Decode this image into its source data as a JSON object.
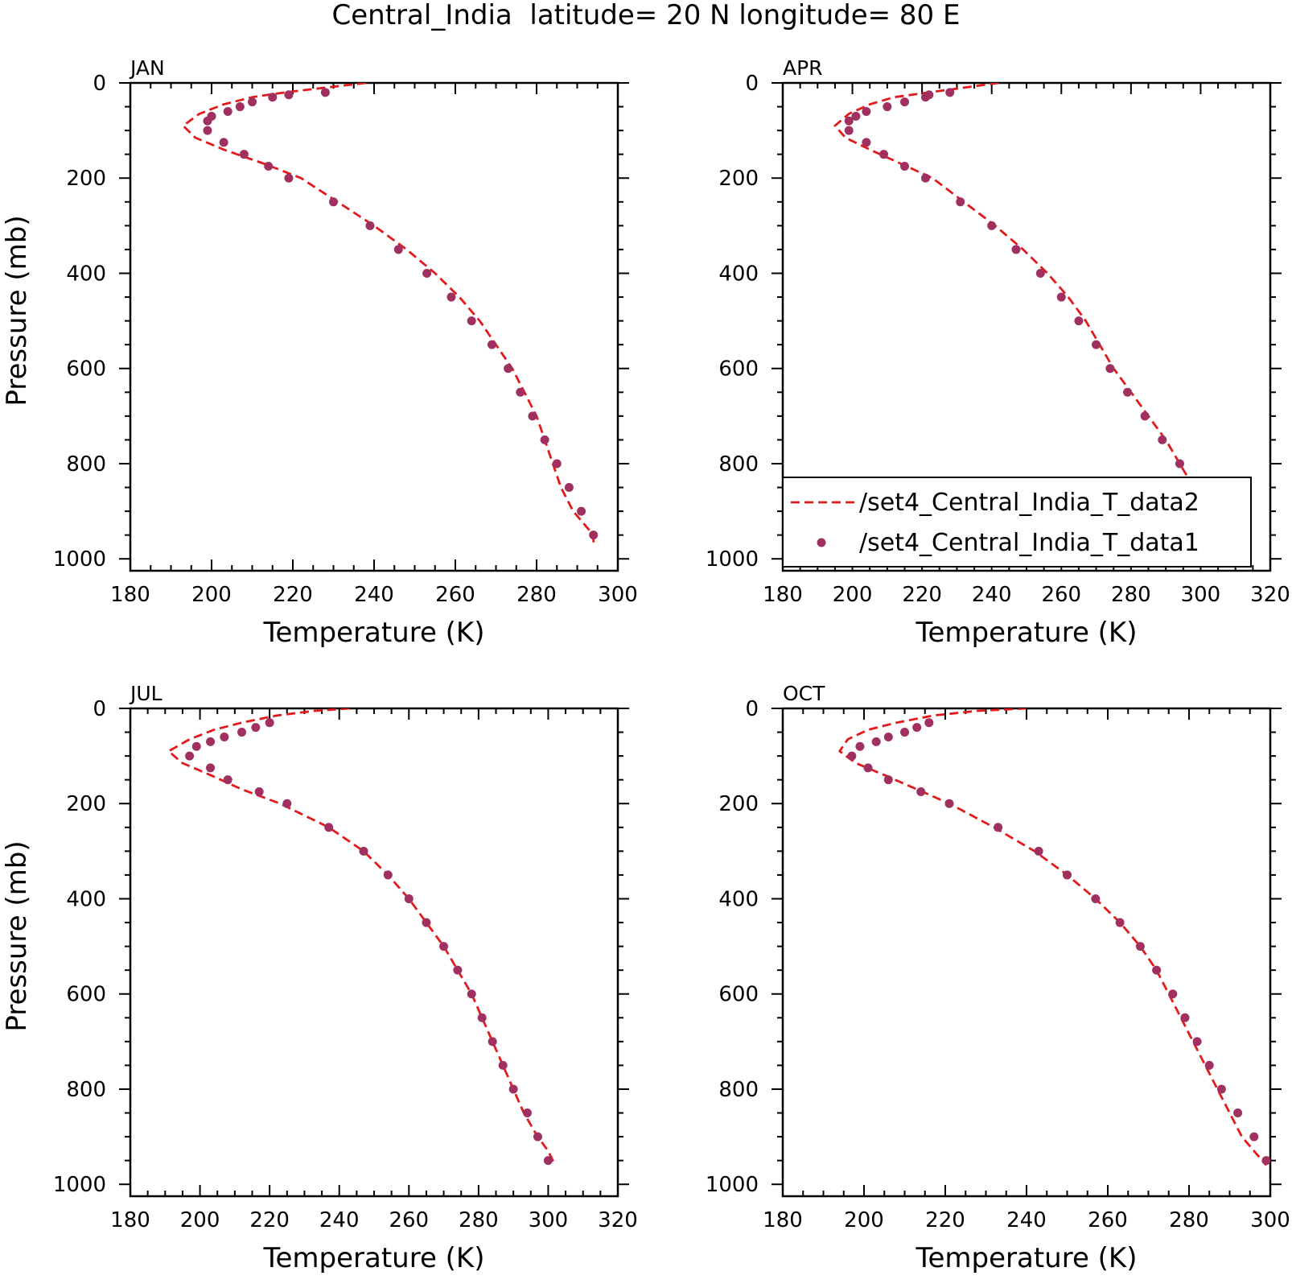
{
  "figure_title": "Central_India  latitude= 20 N longitude= 80 E",
  "legend": {
    "entries": [
      {
        "label": "/set4_Central_India_T_data2",
        "style": "dashed-line"
      },
      {
        "label": "/set4_Central_India_T_data1",
        "style": "dots"
      }
    ]
  },
  "colors": {
    "line": "#e31a1c",
    "dots": "#a03060"
  },
  "chart_data": [
    {
      "type": "line",
      "title": "JAN",
      "xlabel": "Temperature (K)",
      "ylabel": "Pressure (mb)",
      "xlim": [
        180,
        300
      ],
      "ylim": [
        0,
        1025
      ],
      "y_inverted": true,
      "xticks": [
        180,
        200,
        220,
        240,
        260,
        280,
        300
      ],
      "yticks": [
        0,
        200,
        400,
        600,
        800,
        1000
      ],
      "series": [
        {
          "name": "/set4_Central_India_T_data2",
          "style": "dashed-line",
          "x": [
            238,
            228,
            218,
            210,
            203,
            197,
            193,
            196,
            203,
            213,
            222,
            231,
            240,
            248,
            255,
            261,
            266,
            270,
            274,
            277,
            280,
            282,
            284,
            286,
            289,
            292,
            294,
            294
          ],
          "y": [
            0,
            10,
            20,
            30,
            45,
            65,
            90,
            115,
            140,
            170,
            200,
            250,
            300,
            350,
            400,
            450,
            500,
            550,
            600,
            650,
            700,
            750,
            800,
            850,
            900,
            930,
            950,
            970
          ]
        },
        {
          "name": "/set4_Central_India_T_data1",
          "style": "dots",
          "x": [
            228,
            219,
            215,
            210,
            207,
            204,
            200,
            199,
            199,
            203,
            208,
            214,
            219,
            230,
            239,
            246,
            253,
            259,
            264,
            269,
            273,
            276,
            279,
            282,
            285,
            288,
            291,
            294
          ],
          "y": [
            20,
            25,
            30,
            40,
            50,
            60,
            70,
            80,
            100,
            125,
            150,
            175,
            200,
            250,
            300,
            350,
            400,
            450,
            500,
            550,
            600,
            650,
            700,
            750,
            800,
            850,
            900,
            950
          ]
        }
      ]
    },
    {
      "type": "line",
      "title": "APR",
      "xlabel": "Temperature (K)",
      "ylabel": "",
      "xlim": [
        180,
        320
      ],
      "ylim": [
        0,
        1025
      ],
      "y_inverted": true,
      "xticks": [
        180,
        200,
        220,
        240,
        260,
        280,
        300,
        320
      ],
      "yticks": [
        0,
        200,
        400,
        600,
        800,
        1000
      ],
      "series": [
        {
          "name": "/set4_Central_India_T_data2",
          "style": "dashed-line",
          "x": [
            242,
            232,
            222,
            212,
            205,
            199,
            195,
            198,
            205,
            214,
            223,
            232,
            241,
            249,
            256,
            262,
            267,
            271,
            275,
            280,
            285,
            290,
            294,
            298,
            302,
            305,
            307,
            303
          ],
          "y": [
            0,
            10,
            20,
            30,
            45,
            65,
            90,
            115,
            140,
            170,
            200,
            250,
            300,
            350,
            400,
            450,
            500,
            550,
            600,
            650,
            700,
            750,
            800,
            850,
            900,
            930,
            950,
            970
          ]
        },
        {
          "name": "/set4_Central_India_T_data1",
          "style": "dots",
          "x": [
            228,
            222,
            221,
            215,
            210,
            204,
            201,
            199,
            199,
            204,
            209,
            215,
            221,
            231,
            240,
            247,
            254,
            260,
            265,
            270,
            274,
            279,
            284,
            289,
            294,
            298,
            302,
            303
          ],
          "y": [
            20,
            25,
            30,
            40,
            50,
            60,
            70,
            80,
            100,
            125,
            150,
            175,
            200,
            250,
            300,
            350,
            400,
            450,
            500,
            550,
            600,
            650,
            700,
            750,
            800,
            850,
            900,
            950
          ]
        }
      ]
    },
    {
      "type": "line",
      "title": "JUL",
      "xlabel": "Temperature (K)",
      "ylabel": "Pressure (mb)",
      "xlim": [
        180,
        320
      ],
      "ylim": [
        0,
        1025
      ],
      "y_inverted": true,
      "xticks": [
        180,
        200,
        220,
        240,
        260,
        280,
        300,
        320
      ],
      "yticks": [
        0,
        200,
        400,
        600,
        800,
        1000
      ],
      "series": [
        {
          "name": "/set4_Central_India_T_data2",
          "style": "dashed-line",
          "x": [
            243,
            233,
            222,
            212,
            204,
            197,
            191,
            195,
            203,
            212,
            223,
            237,
            247,
            254,
            260,
            265,
            270,
            274,
            278,
            281,
            284,
            287,
            290,
            293,
            297,
            300,
            302
          ],
          "y": [
            0,
            5,
            15,
            30,
            45,
            65,
            90,
            115,
            140,
            170,
            200,
            250,
            300,
            350,
            400,
            450,
            500,
            550,
            600,
            650,
            700,
            750,
            800,
            850,
            900,
            930,
            960
          ]
        },
        {
          "name": "/set4_Central_India_T_data1",
          "style": "dots",
          "x": [
            220,
            216,
            212,
            207,
            203,
            199,
            197,
            203,
            208,
            217,
            225,
            237,
            247,
            254,
            260,
            265,
            270,
            274,
            278,
            281,
            284,
            287,
            290,
            294,
            297,
            300
          ],
          "y": [
            30,
            40,
            50,
            60,
            70,
            80,
            100,
            125,
            150,
            175,
            200,
            250,
            300,
            350,
            400,
            450,
            500,
            550,
            600,
            650,
            700,
            750,
            800,
            850,
            900,
            950
          ]
        }
      ]
    },
    {
      "type": "line",
      "title": "OCT",
      "xlabel": "Temperature (K)",
      "ylabel": "",
      "xlim": [
        180,
        300
      ],
      "ylim": [
        0,
        1025
      ],
      "y_inverted": true,
      "xticks": [
        180,
        200,
        220,
        240,
        260,
        280,
        300
      ],
      "yticks": [
        0,
        200,
        400,
        600,
        800,
        1000
      ],
      "series": [
        {
          "name": "/set4_Central_India_T_data2",
          "style": "dashed-line",
          "x": [
            240,
            228,
            217,
            208,
            201,
            196,
            194,
            198,
            205,
            213,
            221,
            232,
            242,
            250,
            257,
            263,
            268,
            272,
            275,
            278,
            281,
            284,
            287,
            290,
            293,
            296,
            299
          ],
          "y": [
            0,
            5,
            15,
            30,
            45,
            65,
            90,
            115,
            140,
            170,
            200,
            250,
            300,
            350,
            400,
            450,
            500,
            550,
            600,
            650,
            700,
            750,
            800,
            850,
            900,
            930,
            960
          ]
        },
        {
          "name": "/set4_Central_India_T_data1",
          "style": "dots",
          "x": [
            216,
            213,
            210,
            206,
            203,
            199,
            197,
            201,
            206,
            214,
            221,
            233,
            243,
            250,
            257,
            263,
            268,
            272,
            276,
            279,
            282,
            285,
            288,
            292,
            296,
            299
          ],
          "y": [
            30,
            40,
            50,
            60,
            70,
            80,
            100,
            125,
            150,
            175,
            200,
            250,
            300,
            350,
            400,
            450,
            500,
            550,
            600,
            650,
            700,
            750,
            800,
            850,
            900,
            950
          ]
        }
      ]
    }
  ]
}
